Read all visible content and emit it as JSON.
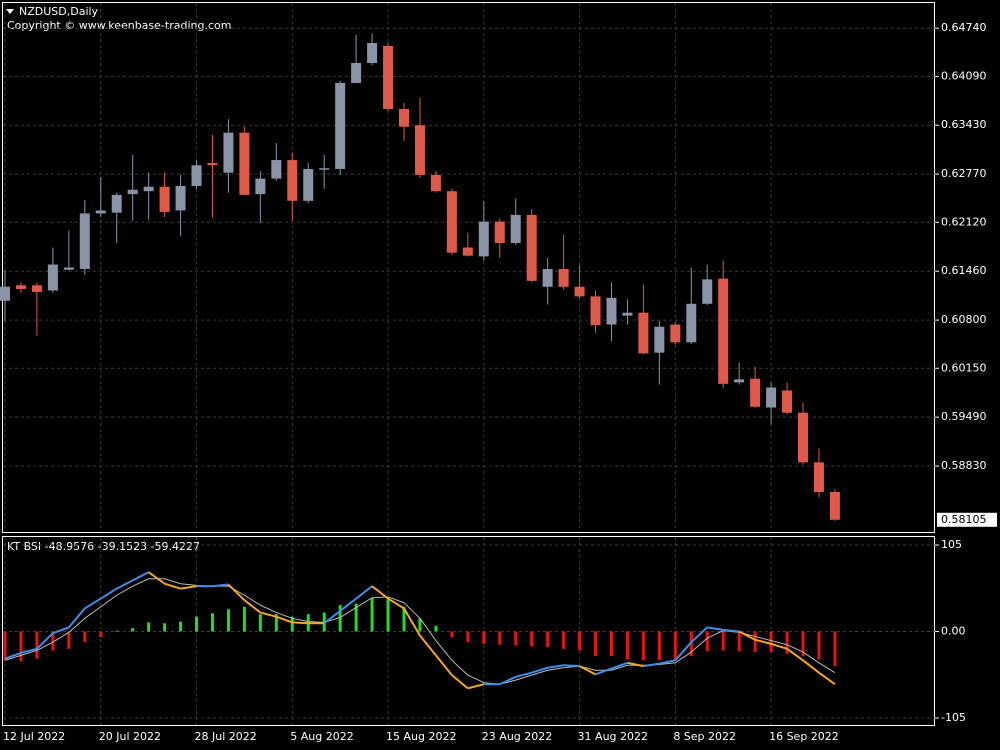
{
  "chart_data": [
    {
      "type": "candlestick",
      "title": "NZDUSD,Daily",
      "subtitle": "Copyright © www.keenbase-trading.com",
      "categories": [
        "12 Jul 2022",
        null,
        null,
        null,
        null,
        null,
        "20 Jul 2022",
        null,
        null,
        null,
        null,
        null,
        "28 Jul 2022",
        null,
        null,
        null,
        null,
        null,
        "5 Aug 2022",
        null,
        null,
        null,
        null,
        null,
        "15 Aug 2022",
        null,
        null,
        null,
        null,
        null,
        "23 Aug 2022",
        null,
        null,
        null,
        null,
        null,
        "31 Aug 2022",
        null,
        null,
        null,
        null,
        null,
        "8 Sep 2022",
        null,
        null,
        null,
        null,
        null,
        "16 Sep 2022",
        null,
        null,
        null,
        null
      ],
      "open": [
        0.6106,
        0.6127,
        0.6127,
        0.612,
        0.6148,
        0.6149,
        0.6224,
        0.6225,
        0.625,
        0.6254,
        0.626,
        0.6228,
        0.6261,
        0.6292,
        0.6279,
        0.6333,
        0.625,
        0.6271,
        0.6296,
        0.6241,
        0.6283,
        0.6284,
        0.64,
        0.6427,
        0.645,
        0.6365,
        0.6343,
        0.6276,
        0.6254,
        0.6178,
        0.6166,
        0.6213,
        0.6184,
        0.6222,
        0.6125,
        0.6149,
        0.6125,
        0.6112,
        0.6074,
        0.6086,
        0.609,
        0.6036,
        0.6074,
        0.605,
        0.6102,
        0.6136,
        0.5996,
        0.6001,
        0.5962,
        0.5985,
        0.5955,
        0.5888,
        0.5848
      ],
      "high": [
        0.6147,
        0.6131,
        0.6131,
        0.6178,
        0.6201,
        0.6242,
        0.6273,
        0.6252,
        0.6303,
        0.6279,
        0.6279,
        0.6276,
        0.6296,
        0.633,
        0.6351,
        0.6341,
        0.6281,
        0.6319,
        0.6306,
        0.6292,
        0.6303,
        0.6403,
        0.6465,
        0.6467,
        0.6454,
        0.6373,
        0.638,
        0.6281,
        0.6257,
        0.6198,
        0.6241,
        0.6217,
        0.6244,
        0.623,
        0.6164,
        0.6195,
        0.6155,
        0.612,
        0.6131,
        0.6108,
        0.6128,
        0.6079,
        0.6077,
        0.6151,
        0.6155,
        0.616,
        0.6023,
        0.6017,
        0.5996,
        0.5996,
        0.5969,
        0.5907,
        0.5852
      ],
      "low": [
        0.6079,
        0.6117,
        0.6059,
        0.6117,
        0.6147,
        0.6141,
        0.6219,
        0.6184,
        0.6214,
        0.6215,
        0.6219,
        0.6193,
        0.6257,
        0.6218,
        0.6252,
        0.6249,
        0.6211,
        0.6268,
        0.6214,
        0.6238,
        0.6257,
        0.6276,
        0.64,
        0.6424,
        0.6362,
        0.6322,
        0.6272,
        0.6252,
        0.6168,
        0.6166,
        0.616,
        0.6164,
        0.6182,
        0.6131,
        0.6101,
        0.6121,
        0.6109,
        0.6063,
        0.6052,
        0.6074,
        0.6034,
        0.5993,
        0.6047,
        0.6048,
        0.61,
        0.5988,
        0.5993,
        0.5961,
        0.5939,
        0.5953,
        0.5885,
        0.5841,
        0.5809
      ],
      "close": [
        0.6125,
        0.6122,
        0.6118,
        0.6155,
        0.6151,
        0.6224,
        0.6228,
        0.6249,
        0.6256,
        0.626,
        0.6226,
        0.6261,
        0.6289,
        0.6289,
        0.6333,
        0.6249,
        0.6271,
        0.6296,
        0.6241,
        0.6284,
        0.6285,
        0.64,
        0.6427,
        0.6454,
        0.6365,
        0.6341,
        0.6276,
        0.6254,
        0.6171,
        0.6167,
        0.6213,
        0.6184,
        0.6222,
        0.6133,
        0.6149,
        0.6125,
        0.6112,
        0.6073,
        0.611,
        0.609,
        0.6035,
        0.6071,
        0.605,
        0.6102,
        0.6135,
        0.5994,
        0.6,
        0.5963,
        0.5989,
        0.5955,
        0.5888,
        0.5848,
        0.58105
      ],
      "up_color": "#8a94a8",
      "down_color": "#e05a4a",
      "ylim": [
        0.5794,
        0.6508
      ],
      "yticks": [
        {
          "value": 0.6474,
          "label": "0.64740"
        },
        {
          "value": 0.6409,
          "label": "0.64090"
        },
        {
          "value": 0.6343,
          "label": "0.63430"
        },
        {
          "value": 0.6277,
          "label": "0.62770"
        },
        {
          "value": 0.6212,
          "label": "0.62120"
        },
        {
          "value": 0.6146,
          "label": "0.61460"
        },
        {
          "value": 0.608,
          "label": "0.60800"
        },
        {
          "value": 0.6015,
          "label": "0.60150"
        },
        {
          "value": 0.5949,
          "label": "0.59490"
        },
        {
          "value": 0.5883,
          "label": "0.58830"
        }
      ],
      "grid": true
    },
    {
      "type": "indicator",
      "title": "KT BSI -48.9576 -39.1523 -59.4227",
      "histogram": [
        -35,
        -36,
        -33,
        -23,
        -21,
        -13,
        -7,
        1,
        4,
        11,
        10,
        12,
        18,
        22,
        27,
        30,
        21,
        21,
        18,
        21,
        23,
        32,
        34,
        41,
        39,
        30,
        16,
        7,
        -7,
        -13,
        -15,
        -16,
        -17,
        -18,
        -19,
        -21,
        -23,
        -30,
        -30,
        -34,
        -35,
        -35,
        -35,
        -30,
        -24,
        -23,
        -24,
        -25,
        -25,
        -27,
        -30,
        -34,
        -42
      ],
      "main": [
        -33,
        -26,
        -21,
        -2,
        5,
        28,
        40,
        52,
        62,
        72,
        58,
        52,
        55,
        55,
        57,
        38,
        23,
        18,
        11,
        10,
        10,
        25,
        40,
        55,
        40,
        28,
        -5,
        -29,
        -53,
        -69,
        -64,
        -64,
        -55,
        -50,
        -44,
        -41,
        -42,
        -52,
        -45,
        -38,
        -42,
        -39,
        -35,
        -13,
        5,
        2,
        0,
        -10,
        -15,
        -21,
        -35,
        -50,
        -64
      ],
      "signal": [
        -35,
        -29,
        -23,
        -13,
        -1,
        16,
        30,
        44,
        55,
        64,
        64,
        58,
        56,
        55,
        55,
        44,
        32,
        23,
        16,
        12,
        11,
        17,
        29,
        41,
        42,
        35,
        16,
        -11,
        -35,
        -53,
        -62,
        -64,
        -59,
        -53,
        -47,
        -44,
        -42,
        -47,
        -47,
        -41,
        -41,
        -40,
        -38,
        -25,
        -8,
        1,
        -1,
        -6,
        -11,
        -16,
        -25,
        -38,
        -50
      ],
      "positive_color": "#22dd22",
      "negative_color": "#ee1111",
      "main_above_color": "#3d8fe6",
      "main_below_color": "#f5a623",
      "signal_color": "#bbbbbb",
      "ylim": [
        -113.5,
        114.7
      ],
      "yticks": [
        105,
        {
          "value": 0,
          "label": "0.00"
        },
        -105
      ],
      "grid": true
    }
  ]
}
